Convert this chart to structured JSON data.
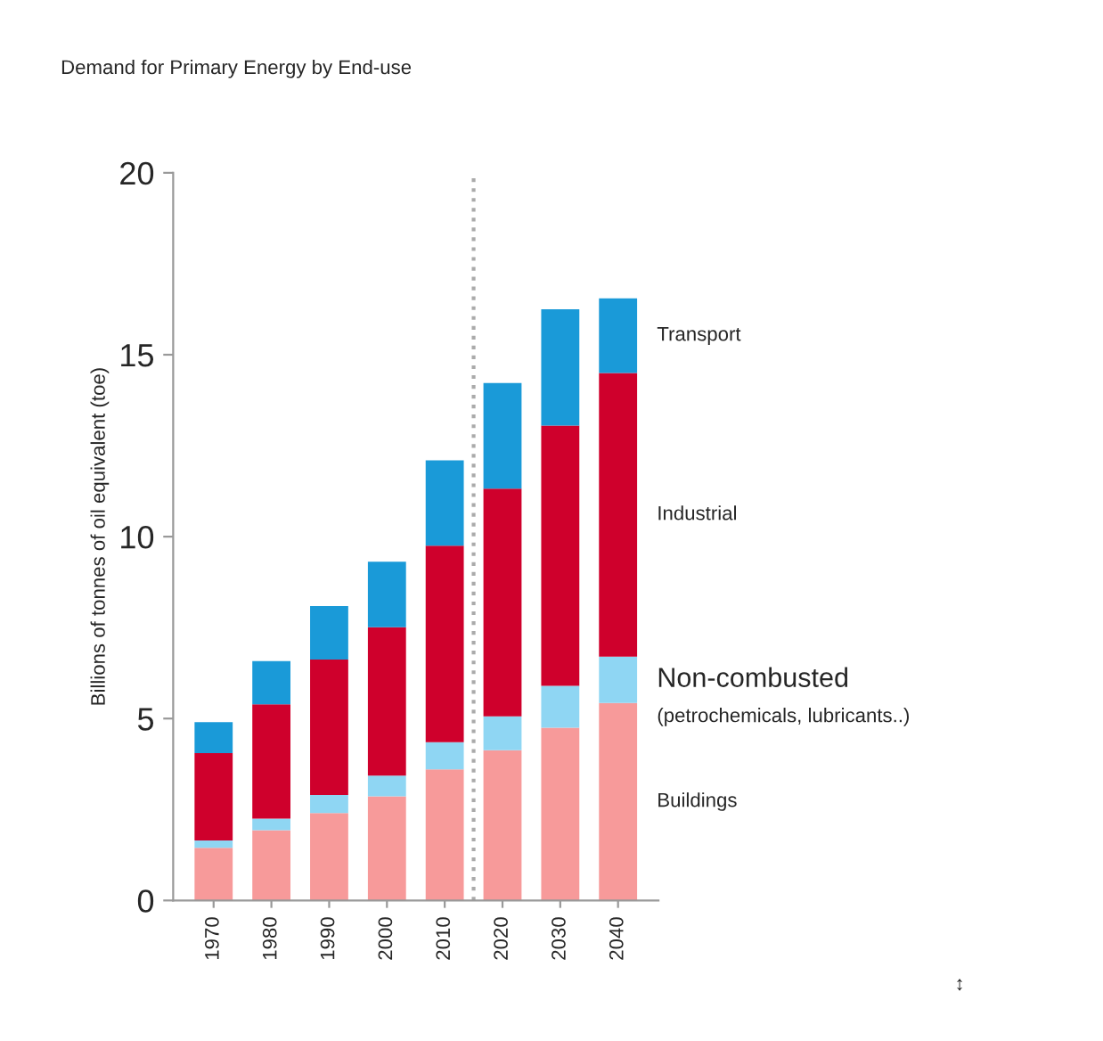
{
  "chart_data": {
    "type": "bar",
    "stacked": true,
    "title": "Demand for Primary Energy by End-use",
    "ylabel": "Billions of tonnes of oil equivalent (toe)",
    "x": [
      1970,
      1980,
      1990,
      2000,
      2010,
      2020,
      2030,
      2040
    ],
    "xlim": [
      1963,
      2047
    ],
    "xticks": [
      1970,
      1980,
      1990,
      2000,
      2010,
      2020,
      2030,
      2040
    ],
    "ylim": [
      0,
      20
    ],
    "yticks": [
      0,
      5,
      10,
      15,
      20
    ],
    "series": [
      {
        "name": "Buildings",
        "color": "#f79a9a",
        "values": [
          1.45,
          1.93,
          2.4,
          2.86,
          3.6,
          4.13,
          4.75,
          5.43
        ]
      },
      {
        "name": "Non-combusted",
        "color": "#8fd6f3",
        "values": [
          0.2,
          0.32,
          0.5,
          0.57,
          0.75,
          0.93,
          1.15,
          1.27
        ]
      },
      {
        "name": "Industrial",
        "color": "#cf002c",
        "values": [
          2.4,
          3.14,
          3.72,
          4.08,
          5.4,
          6.26,
          7.15,
          7.8
        ]
      },
      {
        "name": "Transport",
        "color": "#1a9ad8",
        "values": [
          0.85,
          1.19,
          1.47,
          1.8,
          2.35,
          2.9,
          3.2,
          2.05
        ]
      }
    ],
    "ref_lines": [
      {
        "axis": "x",
        "value": 2015,
        "color": "#aaaaaa",
        "line_style": "dotted"
      }
    ],
    "annotations": [
      "(petrochemicals, lubricants..)",
      "↕"
    ],
    "grid": false,
    "legend": false
  }
}
